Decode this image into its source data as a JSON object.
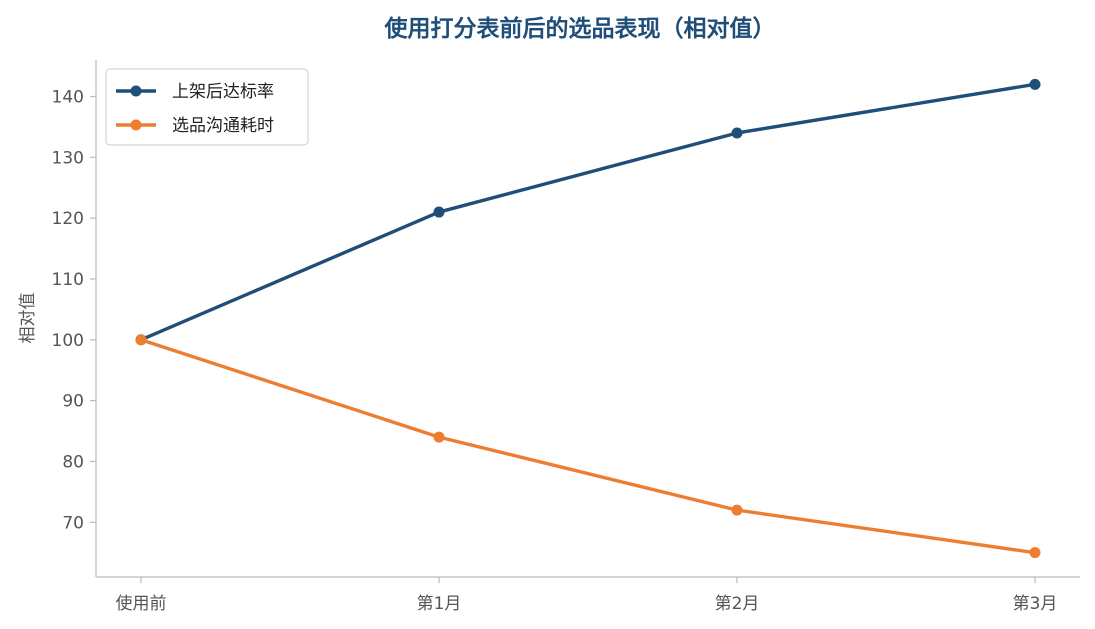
{
  "chart_data": {
    "type": "line",
    "title": "使用打分表前后的选品表现（相对值）",
    "xlabel": "",
    "ylabel": "相对值",
    "categories": [
      "使用前",
      "第1月",
      "第2月",
      "第3月"
    ],
    "series": [
      {
        "name": "上架后达标率",
        "values": [
          100,
          121,
          134,
          142
        ],
        "color": "#1f4e79"
      },
      {
        "name": "选品沟通耗时",
        "values": [
          100,
          84,
          72,
          65
        ],
        "color": "#ed7d31"
      }
    ],
    "ylim": [
      61,
      146
    ],
    "yticks": [
      70,
      80,
      90,
      100,
      110,
      120,
      130,
      140
    ],
    "grid": false,
    "legend_position": "top-left"
  }
}
